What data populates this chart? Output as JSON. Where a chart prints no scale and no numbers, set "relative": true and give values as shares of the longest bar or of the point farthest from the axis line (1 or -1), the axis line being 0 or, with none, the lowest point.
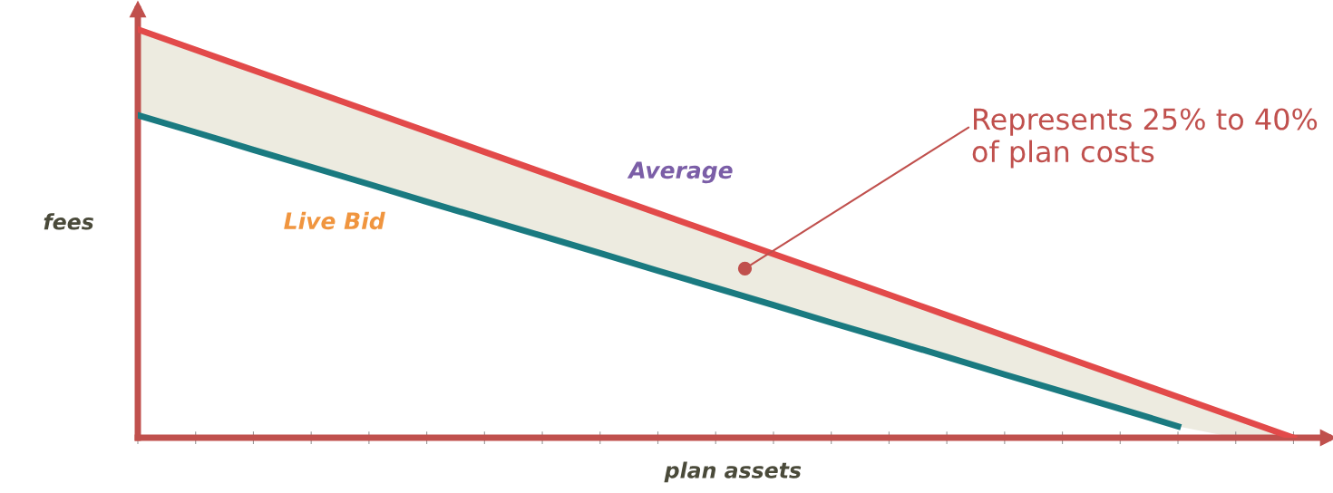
{
  "chart_data": {
    "type": "line",
    "relative": true,
    "xlabel": "plan assets",
    "ylabel": "fees",
    "categories": [
      null,
      null,
      null,
      null,
      null,
      null,
      null,
      null,
      null,
      null,
      null,
      null,
      null,
      null,
      null,
      null,
      null,
      null,
      null,
      null,
      null
    ],
    "series": [
      {
        "name": "Average",
        "color": "#e24a4a",
        "values": [
          1,
          0.95,
          0.9,
          0.85,
          0.8,
          0.75,
          0.7,
          0.65,
          0.6,
          0.55,
          0.5,
          0.45,
          0.4,
          0.35,
          0.3,
          0.25,
          0.2,
          0.15,
          0.1,
          0.05,
          0
        ],
        "lower": [
          0.79,
          0.748,
          0.705,
          0.663,
          0.621,
          0.578,
          0.536,
          0.494,
          0.452,
          0.409,
          0.367,
          0.325,
          0.282,
          0.24,
          0.198,
          0.155,
          0.113,
          0.071,
          0.028,
          0,
          0
        ],
        "upper": [
          1,
          0.95,
          0.9,
          0.85,
          0.8,
          0.75,
          0.7,
          0.65,
          0.6,
          0.55,
          0.5,
          0.45,
          0.4,
          0.35,
          0.3,
          0.25,
          0.2,
          0.15,
          0.1,
          0.05,
          0
        ]
      },
      {
        "name": "Live Bid",
        "color": "#1a7a80",
        "values": [
          0.79,
          0.748,
          0.705,
          0.663,
          0.621,
          0.578,
          0.536,
          0.494,
          0.452,
          0.409,
          0.367,
          0.325,
          0.282,
          0.24,
          0.198,
          0.155,
          0.113,
          0.071,
          0.028,
          null,
          null
        ]
      }
    ],
    "annotations": [
      "Represents 25% to 40% of plan costs"
    ],
    "grid": false,
    "legend": false,
    "tick_labels": false,
    "marker": "none",
    "line_style": "solid"
  }
}
